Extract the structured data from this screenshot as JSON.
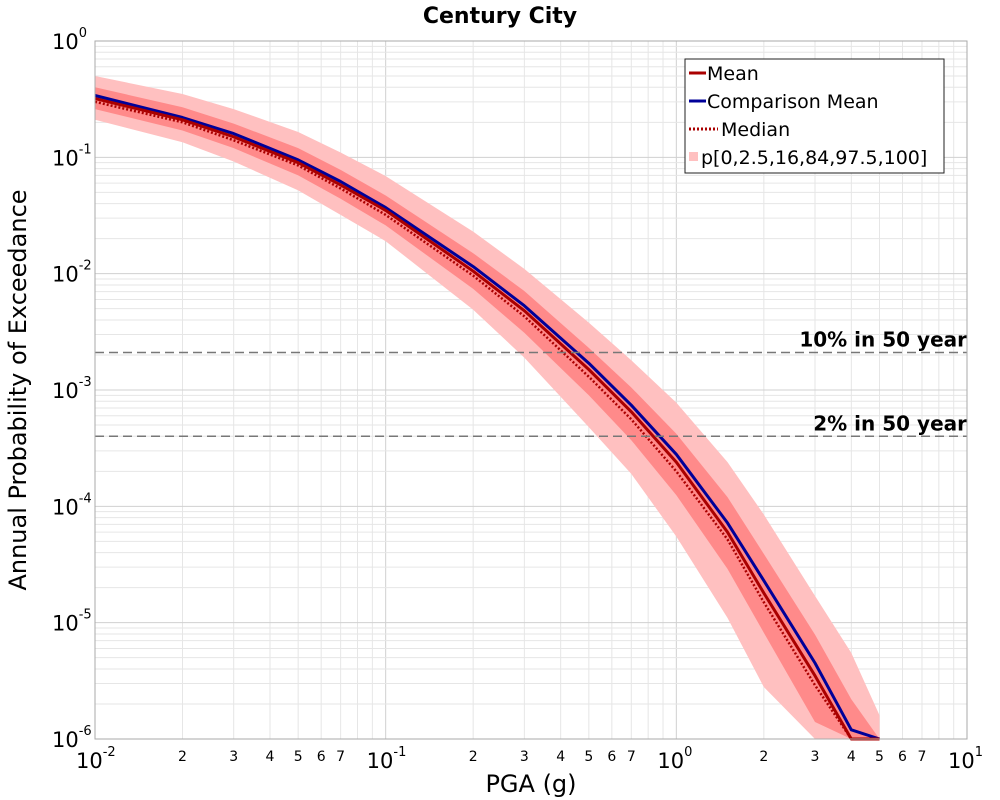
{
  "chart_data": {
    "type": "line",
    "title": "Century City",
    "xlabel": "PGA (g)",
    "ylabel": "Annual Probability of Exceedance",
    "x_scale": "log",
    "y_scale": "log",
    "xlim": [
      0.01,
      10
    ],
    "ylim": [
      1e-06,
      1
    ],
    "grid": true,
    "legend_position": "top-right",
    "x_major_ticks": [
      {
        "value": 0.01,
        "base": "10",
        "exp": "-2"
      },
      {
        "value": 0.1,
        "base": "10",
        "exp": "-1"
      },
      {
        "value": 1,
        "base": "10",
        "exp": "0"
      },
      {
        "value": 10,
        "base": "10",
        "exp": "1"
      }
    ],
    "x_minor_tick_labels": [
      "2",
      "3",
      "4",
      "5",
      "6",
      "7"
    ],
    "y_major_ticks": [
      {
        "value": 1,
        "base": "10",
        "exp": "0"
      },
      {
        "value": 0.1,
        "base": "10",
        "exp": "-1"
      },
      {
        "value": 0.01,
        "base": "10",
        "exp": "-2"
      },
      {
        "value": 0.001,
        "base": "10",
        "exp": "-3"
      },
      {
        "value": 0.0001,
        "base": "10",
        "exp": "-4"
      },
      {
        "value": 1e-05,
        "base": "10",
        "exp": "-5"
      },
      {
        "value": 1e-06,
        "base": "10",
        "exp": "-6"
      }
    ],
    "x": [
      0.01,
      0.02,
      0.03,
      0.05,
      0.07,
      0.1,
      0.2,
      0.3,
      0.5,
      0.7,
      1.0,
      1.5,
      2.0,
      3.0,
      4.0,
      5.0
    ],
    "series": [
      {
        "name": "Mean",
        "style": "solid",
        "color": "#aa0000",
        "values": [
          0.32,
          0.21,
          0.15,
          0.09,
          0.058,
          0.035,
          0.0105,
          0.0048,
          0.0015,
          0.00065,
          0.00024,
          6e-05,
          1.8e-05,
          3.5e-06,
          9.5e-07,
          2.5e-07
        ]
      },
      {
        "name": "Comparison Mean",
        "style": "solid",
        "color": "#000099",
        "values": [
          0.34,
          0.22,
          0.16,
          0.095,
          0.062,
          0.037,
          0.0115,
          0.0053,
          0.0017,
          0.00074,
          0.00028,
          7.2e-05,
          2.3e-05,
          4.5e-06,
          1.2e-06,
          3.2e-07
        ]
      },
      {
        "name": "Median",
        "style": "dotted",
        "color": "#aa0000",
        "values": [
          0.3,
          0.2,
          0.14,
          0.085,
          0.054,
          0.032,
          0.0096,
          0.0043,
          0.0013,
          0.00056,
          0.0002,
          5.2e-05,
          1.5e-05,
          2.9e-06,
          7.8e-07,
          2e-07
        ]
      }
    ],
    "bands": {
      "name": "p[0,2.5,16,84,97.5,100]",
      "outer": {
        "color": "#ffc0c0",
        "lower": [
          0.21,
          0.135,
          0.092,
          0.052,
          0.032,
          0.019,
          0.0049,
          0.0019,
          0.00048,
          0.00019,
          5.5e-05,
          1.1e-05,
          2.8e-06,
          4.2e-07,
          1e-06,
          1e-07
        ],
        "upper": [
          0.5,
          0.35,
          0.26,
          0.165,
          0.11,
          0.069,
          0.023,
          0.011,
          0.0038,
          0.0018,
          0.00078,
          0.00024,
          8.5e-05,
          1.7e-05,
          5.5e-06,
          1.6e-06
        ]
      },
      "inner": {
        "color": "#ff8a8a",
        "lower": [
          0.26,
          0.17,
          0.12,
          0.07,
          0.044,
          0.026,
          0.0074,
          0.0031,
          0.0009,
          0.00037,
          0.000125,
          2.9e-05,
          8.2e-06,
          1.4e-06,
          3.6e-07,
          1e-07
        ],
        "upper": [
          0.4,
          0.27,
          0.195,
          0.12,
          0.078,
          0.047,
          0.015,
          0.0071,
          0.0023,
          0.00105,
          0.00042,
          0.00012,
          3.9e-05,
          7.9e-06,
          2.2e-06,
          6.2e-07
        ]
      }
    },
    "reference_lines": [
      {
        "label": "10% in 50 year",
        "value": 0.0021
      },
      {
        "label": "2% in 50 year",
        "value": 0.0004
      }
    ]
  }
}
